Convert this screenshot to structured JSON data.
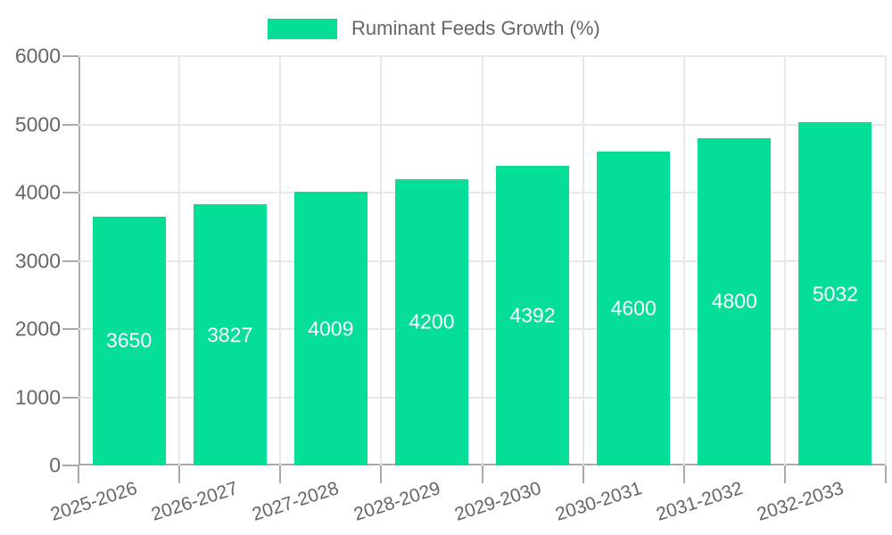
{
  "chart_data": {
    "type": "bar",
    "title": "",
    "legend": {
      "label": "Ruminant Feeds Growth (%)",
      "position": "top-center"
    },
    "categories": [
      "2025-2026",
      "2026-2027",
      "2027-2028",
      "2028-2029",
      "2029-2030",
      "2030-2031",
      "2031-2032",
      "2032-2033"
    ],
    "series": [
      {
        "name": "Ruminant Feeds Growth (%)",
        "values": [
          3650,
          3827,
          4009,
          4200,
          4392,
          4600,
          4800,
          5032
        ]
      }
    ],
    "bar_value_labels": [
      "3650",
      "3827",
      "4009",
      "4200",
      "4392",
      "4600",
      "4800",
      "5032"
    ],
    "xlabel": "",
    "ylabel": "",
    "ylim": [
      0,
      6000
    ],
    "yticks": [
      0,
      1000,
      2000,
      3000,
      4000,
      5000,
      6000
    ],
    "grid": "both",
    "x_tick_rotation_deg": -18,
    "colors": {
      "bar": "#04DE97",
      "bar_label_text": "#FFFFFF",
      "axis_line": "#AAAAAA",
      "gridline": "#E8E8E8",
      "tick_label_text": "#666666",
      "legend_text": "#666666",
      "background": "#FFFFFF"
    }
  }
}
